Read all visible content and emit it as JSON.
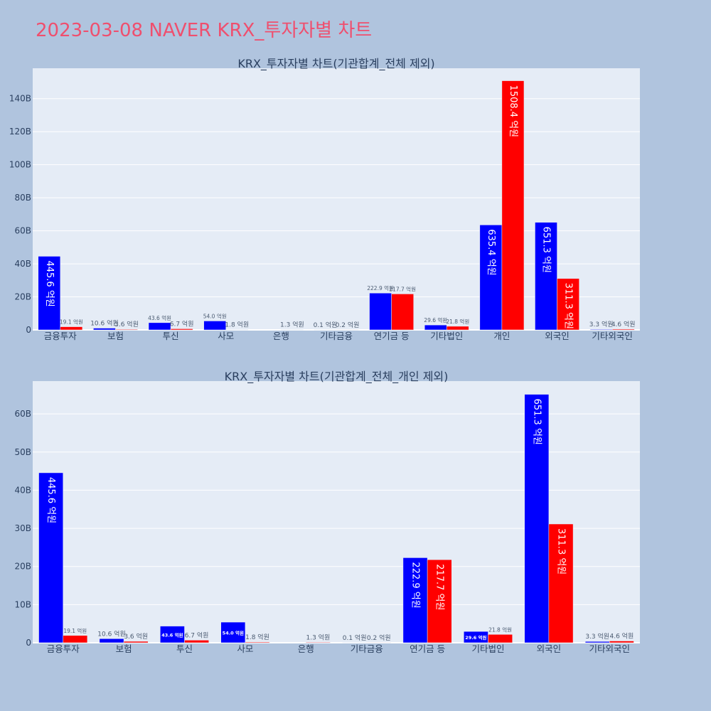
{
  "title": "2023-03-08 NAVER KRX_투자자별 차트",
  "colors": {
    "background": "#b0c4de",
    "plot_bg": "#e5ecf6",
    "buy": "#0000ff",
    "sell": "#ff0000",
    "title": "#ef4f6e"
  },
  "chart_data": [
    {
      "type": "bar",
      "title": "KRX_투자자별 차트(기관합계_전체 제외)",
      "categories": [
        "금융투자",
        "보험",
        "투신",
        "사모",
        "은행",
        "기타금융",
        "연기금 등",
        "기타법인",
        "개인",
        "외국인",
        "기타외국인"
      ],
      "series": [
        {
          "values": [
            44.56,
            1.06,
            4.36,
            5.4,
            0.0,
            0.01,
            22.29,
            2.96,
            63.54,
            65.13,
            0.33
          ],
          "labels": [
            "445.6 억원",
            "10.6 억원",
            "43.6 억원",
            "54.0 억원",
            "",
            "0.1 억원",
            "222.9 억원",
            "29.6 억원",
            "635.4 억원",
            "651.3 억원",
            "3.3 억원"
          ]
        },
        {
          "values": [
            1.91,
            0.36,
            0.67,
            0.18,
            0.13,
            0.02,
            21.77,
            2.18,
            150.84,
            31.13,
            0.46
          ],
          "labels": [
            "19.1 억원",
            "3.6 억원",
            "6.7 억원",
            "1.8 억원",
            "1.3 억원",
            "0.2 억원",
            "217.7 억원",
            "21.8 억원",
            "1508.4 억원",
            "311.3 억원",
            "4.6 억원"
          ]
        }
      ],
      "yticks": [
        0,
        20,
        40,
        60,
        80,
        100,
        120,
        140
      ],
      "ytick_labels": [
        "0",
        "20B",
        "40B",
        "60B",
        "80B",
        "100B",
        "120B",
        "140B"
      ],
      "ylim": [
        0,
        158.4
      ],
      "grid": true,
      "legend": "none"
    },
    {
      "type": "bar",
      "title": "KRX_투자자별 차트(기관합계_전체_개인 제외)",
      "categories": [
        "금융투자",
        "보험",
        "투신",
        "사모",
        "은행",
        "기타금융",
        "연기금 등",
        "기타법인",
        "외국인",
        "기타외국인"
      ],
      "series": [
        {
          "values": [
            44.56,
            1.06,
            4.36,
            5.4,
            0.0,
            0.01,
            22.29,
            2.96,
            65.13,
            0.33
          ],
          "labels": [
            "445.6 억원",
            "10.6 억원",
            "43.6 억원",
            "54.0 억원",
            "",
            "0.1 억원",
            "222.9 억원",
            "29.6 억원",
            "651.3 억원",
            "3.3 억원"
          ]
        },
        {
          "values": [
            1.91,
            0.36,
            0.67,
            0.18,
            0.13,
            0.02,
            21.77,
            2.18,
            31.13,
            0.46
          ],
          "labels": [
            "19.1 억원",
            "3.6 억원",
            "6.7 억원",
            "1.8 억원",
            "1.3 억원",
            "0.2 억원",
            "217.7 억원",
            "21.8 억원",
            "311.3 억원",
            "4.6 억원"
          ]
        }
      ],
      "yticks": [
        0,
        10,
        20,
        30,
        40,
        50,
        60
      ],
      "ytick_labels": [
        "0",
        "10B",
        "20B",
        "30B",
        "40B",
        "50B",
        "60B"
      ],
      "ylim": [
        0,
        68.6
      ],
      "grid": true,
      "legend": "none"
    }
  ]
}
